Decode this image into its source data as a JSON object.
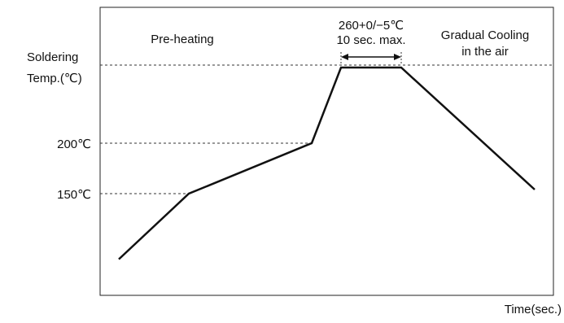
{
  "chart_data": {
    "type": "line",
    "title": "",
    "ylabel_lines": [
      "Soldering",
      "Temp.(℃)"
    ],
    "xlabel": "Time(sec.)",
    "y_ticks": [
      {
        "value": 200,
        "label": "200℃"
      },
      {
        "value": 150,
        "label": "150℃"
      }
    ],
    "peak_level": 260,
    "grid": false,
    "series": [
      {
        "values": [
          {
            "x": 0,
            "y": 85
          },
          {
            "x": 1,
            "y": 150
          },
          {
            "x": 2,
            "y": 200
          },
          {
            "x": 2.5,
            "y": 275
          },
          {
            "x": 3.5,
            "y": 275
          },
          {
            "x": 5.5,
            "y": 154
          }
        ]
      }
    ],
    "annotations": {
      "preheating": "Pre-heating",
      "peak_temp": "260+0/−5℃",
      "peak_time": "10 sec. max.",
      "cooling_line1": "Gradual Cooling",
      "cooling_line2": "in the air"
    }
  }
}
